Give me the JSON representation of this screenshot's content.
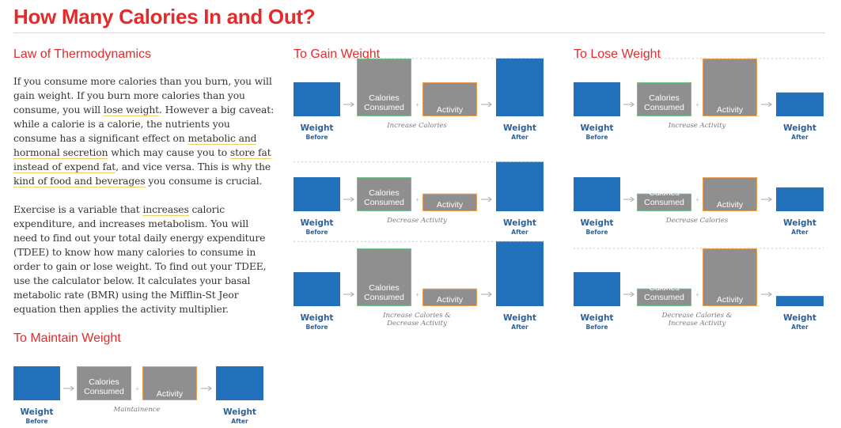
{
  "title": "How Many Calories In and Out?",
  "sections": {
    "law": "Law of Thermodynamics",
    "maintain": "To Maintain Weight",
    "gain": "To Gain Weight",
    "lose": "To Lose Weight"
  },
  "paragraph1": [
    {
      "t": "If you consume more calories than you burn, you will gain weight. If you burn more calories than you consume, you will "
    },
    {
      "t": "lose weight",
      "u": true
    },
    {
      "t": ". However a big caveat: while a calorie is a calorie, the nutrients you consume has a significant effect on "
    },
    {
      "t": "metabolic and hormonal secretion",
      "u": true
    },
    {
      "t": " which may cause you to "
    },
    {
      "t": "store fat instead of expend fat",
      "u": true
    },
    {
      "t": ", and vice versa. This is why the "
    },
    {
      "t": "kind of food and beverages",
      "u": true
    },
    {
      "t": " you consume is crucial."
    }
  ],
  "paragraph2": [
    {
      "t": "Exercise is a variable that "
    },
    {
      "t": "increases",
      "u": true
    },
    {
      "t": " caloric expenditure, and increases metabolism. You will need to find out your total daily energy expenditure (TDEE) to know how many calories to consume in order to gain or lose weight. To find out your TDEE, use the calculator below. It calculates your basal metabolic rate (BMR) using the Mifflin-St Jeor equation then applies the activity multiplier."
    }
  ],
  "labels": {
    "weight": "Weight",
    "before": "Before",
    "after": "After",
    "calories_line1": "Calories",
    "calories_line2": "Consumed",
    "activity": "Activity"
  },
  "colors": {
    "red": "#e32b2b",
    "blue": "#2371bb",
    "gray": "#8f8f8f",
    "green": "#6ec58a",
    "orange": "#f0a150"
  },
  "diagrams": [
    {
      "id": "maintain",
      "caption": [
        "Maintainence"
      ],
      "before": 1.0,
      "calories": 1.0,
      "activity": 1.0,
      "after": 1.0
    },
    {
      "id": "gain-1",
      "caption": [
        "Increase Calories"
      ],
      "before": 1.0,
      "calories": 1.7,
      "activity": 1.0,
      "after": 1.7
    },
    {
      "id": "gain-2",
      "caption": [
        "Decrease Activity"
      ],
      "before": 1.0,
      "calories": 1.0,
      "activity": 0.52,
      "after": 1.45
    },
    {
      "id": "gain-3",
      "caption": [
        "Increase Calories &",
        "Decrease Activity"
      ],
      "before": 1.0,
      "calories": 1.7,
      "activity": 0.52,
      "after": 1.9
    },
    {
      "id": "lose-1",
      "caption": [
        "Increase Activity"
      ],
      "before": 1.0,
      "calories": 1.0,
      "activity": 1.7,
      "after": 0.7
    },
    {
      "id": "lose-2",
      "caption": [
        "Decrease Calories"
      ],
      "before": 1.0,
      "calories": 0.52,
      "activity": 1.0,
      "after": 0.7
    },
    {
      "id": "lose-3",
      "caption": [
        "Decrease Calories &",
        "Increase Activity"
      ],
      "before": 1.0,
      "calories": 0.52,
      "activity": 1.7,
      "after": 0.3
    }
  ]
}
